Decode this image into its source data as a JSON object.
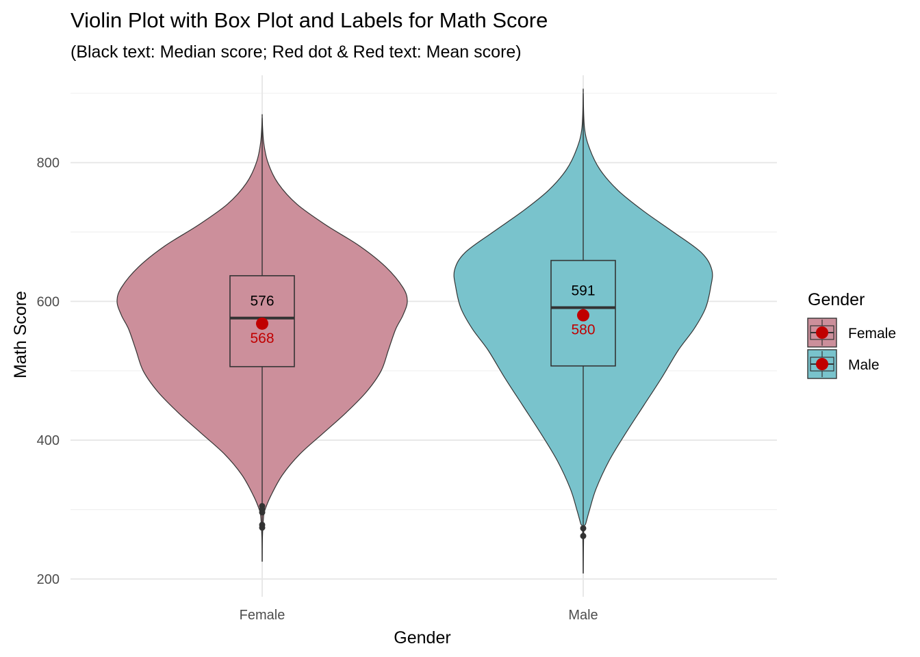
{
  "chart_data": {
    "type": "violin",
    "title": "Violin Plot with Box Plot and Labels for Math Score",
    "subtitle": "(Black text: Median score; Red dot & Red text: Mean score)",
    "xlabel": "Gender",
    "ylabel": "Math Score",
    "ylim": [
      185,
      910
    ],
    "y_ticks": [
      200,
      400,
      600,
      800
    ],
    "grid": true,
    "legend": {
      "title": "Gender",
      "position": "right"
    },
    "mean_color": "#c00000",
    "groups": [
      {
        "name": "Female",
        "fill": "#cc8f9b",
        "min": 225,
        "max": 865,
        "q1": 506,
        "median": 576,
        "q3": 637,
        "whisker_low": 310,
        "whisker_high": 830,
        "mean": 568,
        "median_label": "576",
        "mean_label": "568",
        "outliers": [
          305,
          300,
          296,
          278,
          274
        ],
        "density": [
          [
            225,
            0.0
          ],
          [
            260,
            0.002
          ],
          [
            290,
            0.01
          ],
          [
            300,
            0.02
          ],
          [
            320,
            0.06
          ],
          [
            350,
            0.14
          ],
          [
            380,
            0.26
          ],
          [
            410,
            0.42
          ],
          [
            440,
            0.58
          ],
          [
            470,
            0.72
          ],
          [
            500,
            0.82
          ],
          [
            530,
            0.87
          ],
          [
            560,
            0.92
          ],
          [
            580,
            0.97
          ],
          [
            600,
            1.0
          ],
          [
            620,
            0.97
          ],
          [
            650,
            0.85
          ],
          [
            680,
            0.67
          ],
          [
            710,
            0.44
          ],
          [
            740,
            0.24
          ],
          [
            770,
            0.11
          ],
          [
            800,
            0.04
          ],
          [
            830,
            0.01
          ],
          [
            865,
            0.0
          ]
        ]
      },
      {
        "name": "Male",
        "fill": "#79c3cc",
        "min": 208,
        "max": 900,
        "q1": 507,
        "median": 591,
        "q3": 659,
        "whisker_low": 285,
        "whisker_high": 880,
        "mean": 580,
        "median_label": "591",
        "mean_label": "580",
        "outliers": [
          273,
          262
        ],
        "density": [
          [
            208,
            0.0
          ],
          [
            270,
            0.005
          ],
          [
            280,
            0.02
          ],
          [
            300,
            0.05
          ],
          [
            330,
            0.1
          ],
          [
            370,
            0.2
          ],
          [
            410,
            0.33
          ],
          [
            450,
            0.47
          ],
          [
            490,
            0.61
          ],
          [
            530,
            0.74
          ],
          [
            560,
            0.86
          ],
          [
            590,
            0.95
          ],
          [
            620,
            0.99
          ],
          [
            645,
            1.0
          ],
          [
            670,
            0.92
          ],
          [
            700,
            0.7
          ],
          [
            730,
            0.47
          ],
          [
            760,
            0.27
          ],
          [
            790,
            0.13
          ],
          [
            820,
            0.05
          ],
          [
            850,
            0.01
          ],
          [
            900,
            0.0
          ]
        ]
      }
    ]
  }
}
